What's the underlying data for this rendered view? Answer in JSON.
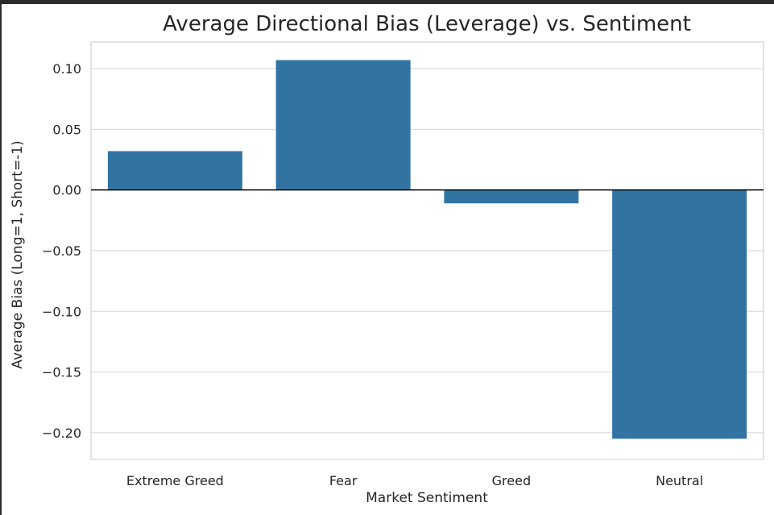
{
  "chart_data": {
    "type": "bar",
    "title": "Average Directional Bias (Leverage) vs. Sentiment",
    "xlabel": "Market Sentiment",
    "ylabel": "Average Bias (Long=1, Short=-1)",
    "categories": [
      "Extreme Greed",
      "Fear",
      "Greed",
      "Neutral"
    ],
    "values": [
      0.032,
      0.107,
      -0.011,
      -0.205
    ],
    "ylim": [
      -0.222,
      0.122
    ],
    "yticks": [
      0.1,
      0.05,
      0.0,
      -0.05,
      -0.1,
      -0.15,
      -0.2
    ],
    "ytick_labels": [
      "0.10",
      "0.05",
      "0.00",
      "−0.05",
      "−0.10",
      "−0.15",
      "−0.20"
    ],
    "grid": true,
    "bar_color": "#3274a1",
    "reference_line": 0
  }
}
